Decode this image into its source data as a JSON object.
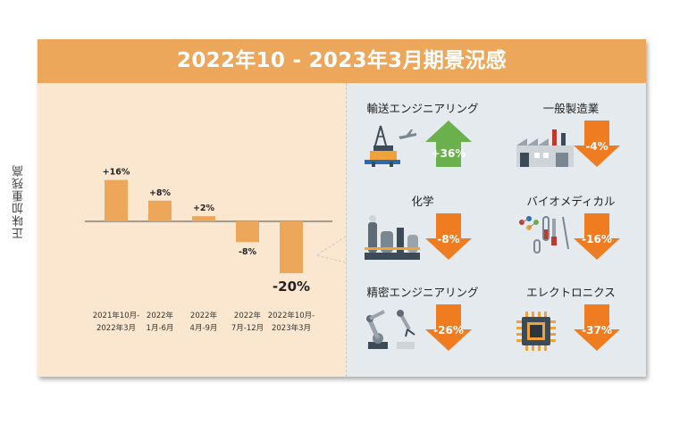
{
  "title": "2022年10 - 2023年3月期景況感",
  "y_axis_label": "正味加重残高",
  "chart_data": {
    "type": "bar",
    "categories": [
      [
        "2021年10月-",
        "2022年3月"
      ],
      [
        "2022年",
        "1月-6月"
      ],
      [
        "2022年",
        "4月-9月"
      ],
      [
        "2022年",
        "7月-12月"
      ],
      [
        "2022年10月-",
        "2023年3月"
      ]
    ],
    "values": [
      16,
      8,
      2,
      -8,
      -20
    ],
    "value_labels": [
      "+16%",
      "+8%",
      "+2%",
      "-8%",
      "-20%"
    ],
    "ylim": [
      -25,
      20
    ],
    "bar_color": "#eca75b"
  },
  "sectors": [
    {
      "name": "輸送エンジニアリング",
      "value": "+36%",
      "direction": "up",
      "icon": "oil-rig-airplane-icon"
    },
    {
      "name": "一般製造業",
      "value": "-4%",
      "direction": "down",
      "icon": "factory-icon"
    },
    {
      "name": "化学",
      "value": "-8%",
      "direction": "down",
      "icon": "chemical-plant-icon"
    },
    {
      "name": "バイオメディカル",
      "value": "-16%",
      "direction": "down",
      "icon": "lab-tools-icon"
    },
    {
      "name": "精密エンジニアリング",
      "value": "-26%",
      "direction": "down",
      "icon": "robot-arm-icon"
    },
    {
      "name": "エレクトロニクス",
      "value": "-37%",
      "direction": "down",
      "icon": "microchip-icon"
    }
  ],
  "colors": {
    "up": "#6ab04c",
    "down": "#f07c22",
    "header": "#eca75b",
    "left_bg": "#fbe7d0",
    "right_bg": "#e5eaee"
  }
}
